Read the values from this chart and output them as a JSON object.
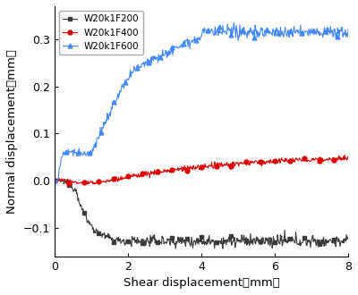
{
  "title": "",
  "xlabel": "Shear displacement（mm）",
  "ylabel": "Normal displacement（mm）",
  "xlim": [
    0,
    8
  ],
  "ylim": [
    -0.16,
    0.37
  ],
  "yticks": [
    -0.1,
    0.0,
    0.1,
    0.2,
    0.3
  ],
  "xticks": [
    0,
    2,
    4,
    6,
    8
  ],
  "series": [
    {
      "label": "W20k1F200",
      "color": "#3a3a3a",
      "marker": "s",
      "markevery": 25,
      "markersize": 3.5,
      "linewidth": 0.8
    },
    {
      "label": "W20k1F400",
      "color": "#dd0000",
      "marker": "o",
      "markevery": 25,
      "markersize": 3.5,
      "linewidth": 0.8
    },
    {
      "label": "W20k1F600",
      "color": "#4488ff",
      "marker": "^",
      "markevery": 20,
      "markersize": 3.5,
      "linewidth": 0.8
    }
  ],
  "background_color": "#ffffff",
  "legend_loc": "upper left",
  "legend_fontsize": 7.5,
  "axis_fontsize": 9.5,
  "tick_fontsize": 9
}
